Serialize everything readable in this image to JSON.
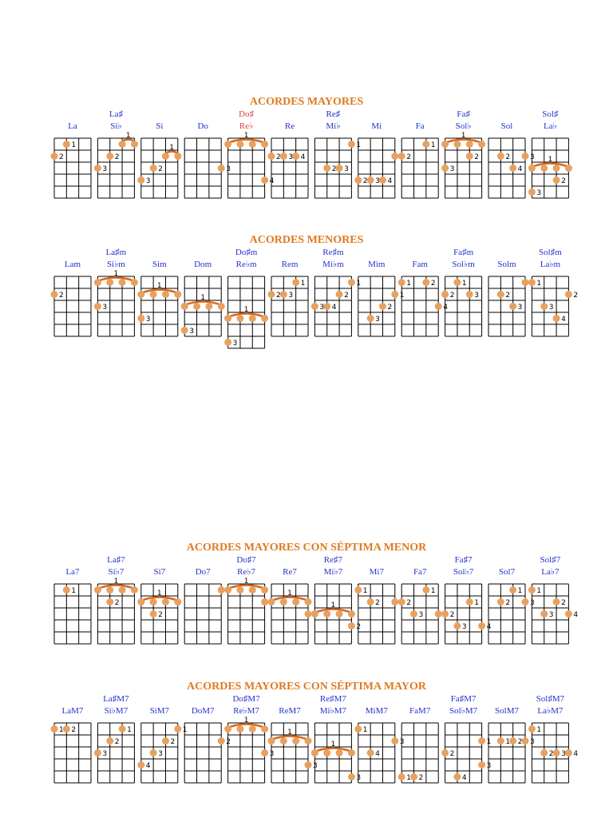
{
  "sections": [
    {
      "title": "ACORDES MAYORES",
      "chords": [
        {
          "name": "La",
          "dots": [
            [
              1,
              2,
              "2"
            ],
            [
              2,
              1,
              "1"
            ]
          ]
        },
        {
          "top": "La♯",
          "name": "Si♭",
          "barre": {
            "fret": 1,
            "from": 3,
            "to": 4,
            "label": "1"
          },
          "dots": [
            [
              2,
              2,
              "2"
            ],
            [
              1,
              3,
              "3"
            ]
          ]
        },
        {
          "name": "Si",
          "barre": {
            "fret": 2,
            "from": 3,
            "to": 4,
            "label": "1"
          },
          "dots": [
            [
              2,
              3,
              "2"
            ],
            [
              1,
              4,
              "3"
            ]
          ]
        },
        {
          "name": "Do",
          "dots": [
            [
              4,
              3,
              "3"
            ]
          ]
        },
        {
          "top": "Do♯",
          "name": "Re♭",
          "color": "#e04040",
          "barre": {
            "fret": 1,
            "from": 1,
            "to": 4,
            "label": "1"
          },
          "dots": [
            [
              4,
              4,
              "4"
            ]
          ]
        },
        {
          "name": "Re",
          "dots": [
            [
              1,
              2,
              "2"
            ],
            [
              2,
              2,
              "3"
            ],
            [
              3,
              2,
              "4"
            ]
          ]
        },
        {
          "top": "Re♯",
          "name": "Mi♭",
          "dots": [
            [
              4,
              1,
              "1"
            ],
            [
              2,
              3,
              "2"
            ],
            [
              3,
              3,
              "3"
            ]
          ]
        },
        {
          "name": "Mi",
          "dots": [
            [
              4,
              2,
              "1"
            ],
            [
              1,
              4,
              "2"
            ],
            [
              2,
              4,
              "3"
            ],
            [
              3,
              4,
              "4"
            ]
          ]
        },
        {
          "name": "Fa",
          "dots": [
            [
              3,
              1,
              "1"
            ],
            [
              1,
              2,
              "2"
            ]
          ]
        },
        {
          "top": "Fa♯",
          "name": "Sol♭",
          "barre": {
            "fret": 1,
            "from": 1,
            "to": 4,
            "label": "1"
          },
          "dots": [
            [
              3,
              2,
              "2"
            ],
            [
              1,
              3,
              "3"
            ]
          ]
        },
        {
          "name": "Sol",
          "dots": [
            [
              2,
              2,
              "2"
            ],
            [
              4,
              2,
              "3"
            ],
            [
              3,
              3,
              "4"
            ]
          ]
        },
        {
          "top": "Sol♯",
          "name": "La♭",
          "barre": {
            "fret": 3,
            "from": 1,
            "to": 4,
            "label": "1"
          },
          "dots": [
            [
              3,
              4,
              "2"
            ],
            [
              1,
              5,
              "3"
            ]
          ]
        }
      ]
    },
    {
      "title": "ACORDES MENORES",
      "chords": [
        {
          "name": "Lam",
          "dots": [
            [
              1,
              2,
              "2"
            ]
          ]
        },
        {
          "top": "La♯m",
          "name": "Si♭m",
          "barre": {
            "fret": 1,
            "from": 1,
            "to": 4,
            "label": "1"
          },
          "dots": [
            [
              1,
              3,
              "3"
            ]
          ]
        },
        {
          "name": "Sim",
          "barre": {
            "fret": 2,
            "from": 1,
            "to": 4,
            "label": "1"
          },
          "dots": [
            [
              1,
              4,
              "3"
            ]
          ]
        },
        {
          "name": "Dom",
          "barre": {
            "fret": 3,
            "from": 1,
            "to": 4,
            "label": "1"
          },
          "dots": [
            [
              1,
              5,
              "3"
            ]
          ]
        },
        {
          "top": "Do♯m",
          "name": "Re♭m",
          "barre": {
            "fret": 4,
            "from": 1,
            "to": 4,
            "label": "1"
          },
          "dots": [
            [
              1,
              6,
              "3"
            ]
          ]
        },
        {
          "name": "Rem",
          "dots": [
            [
              3,
              1,
              "1"
            ],
            [
              1,
              2,
              "2"
            ],
            [
              2,
              2,
              "3"
            ]
          ]
        },
        {
          "top": "Re♯m",
          "name": "Mi♭m",
          "dots": [
            [
              4,
              1,
              "1"
            ],
            [
              3,
              2,
              "2"
            ],
            [
              1,
              3,
              "3"
            ],
            [
              2,
              3,
              "4"
            ]
          ]
        },
        {
          "name": "Mim",
          "dots": [
            [
              4,
              2,
              "1"
            ],
            [
              3,
              3,
              "2"
            ],
            [
              2,
              4,
              "3"
            ]
          ]
        },
        {
          "name": "Fam",
          "dots": [
            [
              1,
              1,
              "1"
            ],
            [
              3,
              1,
              "2"
            ],
            [
              4,
              3,
              "4"
            ]
          ]
        },
        {
          "top": "Fa♯m",
          "name": "Sol♭m",
          "dots": [
            [
              2,
              1,
              "1"
            ],
            [
              1,
              2,
              "2"
            ],
            [
              3,
              2,
              "3"
            ]
          ]
        },
        {
          "name": "Solm",
          "dots": [
            [
              4,
              1,
              "1"
            ],
            [
              2,
              2,
              "2"
            ],
            [
              3,
              3,
              "3"
            ]
          ]
        },
        {
          "top": "Sol♯m",
          "name": "La♭m",
          "dots": [
            [
              1,
              1,
              "1"
            ],
            [
              4,
              2,
              "2"
            ],
            [
              2,
              3,
              "3"
            ],
            [
              3,
              4,
              "4"
            ]
          ]
        }
      ]
    },
    {
      "title": "ACORDES MAYORES CON SÉPTIMA MENOR",
      "chords": [
        {
          "name": "La7",
          "dots": [
            [
              2,
              1,
              "1"
            ]
          ]
        },
        {
          "top": "La♯7",
          "name": "Si♭7",
          "barre": {
            "fret": 1,
            "from": 1,
            "to": 4,
            "label": "1"
          },
          "dots": [
            [
              2,
              2,
              "2"
            ]
          ]
        },
        {
          "name": "Si7",
          "barre": {
            "fret": 2,
            "from": 1,
            "to": 4,
            "label": "1"
          },
          "dots": [
            [
              2,
              3,
              "2"
            ]
          ]
        },
        {
          "name": "Do7",
          "dots": [
            [
              4,
              1,
              "1"
            ]
          ]
        },
        {
          "top": "Do♯7",
          "name": "Re♭7",
          "barre": {
            "fret": 1,
            "from": 1,
            "to": 4,
            "label": "1"
          },
          "dots": [
            [
              4,
              2,
              "2"
            ]
          ]
        },
        {
          "name": "Re7",
          "barre": {
            "fret": 2,
            "from": 1,
            "to": 4,
            "label": "1"
          },
          "dots": [
            [
              4,
              3,
              "2"
            ]
          ]
        },
        {
          "top": "Re♯7",
          "name": "Mi♭7",
          "barre": {
            "fret": 3,
            "from": 1,
            "to": 4,
            "label": "1"
          },
          "dots": [
            [
              4,
              4,
              "2"
            ]
          ]
        },
        {
          "name": "Mi7",
          "dots": [
            [
              1,
              1,
              "1"
            ],
            [
              2,
              2,
              "2"
            ],
            [
              4,
              2,
              "3"
            ]
          ]
        },
        {
          "name": "Fa7",
          "dots": [
            [
              3,
              1,
              "1"
            ],
            [
              1,
              2,
              "2"
            ],
            [
              2,
              3,
              "3"
            ],
            [
              4,
              3,
              "4"
            ]
          ]
        },
        {
          "top": "Fa♯7",
          "name": "Sol♭7",
          "dots": [
            [
              3,
              2,
              "1"
            ],
            [
              1,
              3,
              "2"
            ],
            [
              2,
              4,
              "3"
            ],
            [
              4,
              4,
              "4"
            ]
          ]
        },
        {
          "name": "Sol7",
          "dots": [
            [
              3,
              1,
              "1"
            ],
            [
              2,
              2,
              "2"
            ],
            [
              4,
              2,
              "3"
            ]
          ]
        },
        {
          "top": "Sol♯7",
          "name": "La♭7",
          "dots": [
            [
              1,
              1,
              "1"
            ],
            [
              3,
              2,
              "2"
            ],
            [
              2,
              3,
              "3"
            ],
            [
              4,
              3,
              "4"
            ]
          ]
        }
      ]
    },
    {
      "title": "ACORDES MAYORES CON SÉPTIMA MAYOR",
      "chords": [
        {
          "name": "LaM7",
          "dots": [
            [
              1,
              1,
              "1"
            ],
            [
              2,
              1,
              "2"
            ]
          ]
        },
        {
          "top": "La♯M7",
          "name": "Si♭M7",
          "dots": [
            [
              3,
              1,
              "1"
            ],
            [
              2,
              2,
              "2"
            ],
            [
              1,
              3,
              "3"
            ]
          ]
        },
        {
          "name": "SiM7",
          "dots": [
            [
              4,
              1,
              "1"
            ],
            [
              3,
              2,
              "2"
            ],
            [
              2,
              3,
              "3"
            ],
            [
              1,
              4,
              "4"
            ]
          ]
        },
        {
          "name": "DoM7",
          "dots": [
            [
              4,
              2,
              "2"
            ]
          ]
        },
        {
          "top": "Do♯M7",
          "name": "Re♭M7",
          "barre": {
            "fret": 1,
            "from": 1,
            "to": 4,
            "label": "1"
          },
          "dots": [
            [
              4,
              3,
              "3"
            ]
          ]
        },
        {
          "name": "ReM7",
          "barre": {
            "fret": 2,
            "from": 1,
            "to": 4,
            "label": "1"
          },
          "dots": [
            [
              4,
              4,
              "3"
            ]
          ]
        },
        {
          "top": "Re♯M7",
          "name": "Mi♭M7",
          "barre": {
            "fret": 3,
            "from": 1,
            "to": 4,
            "label": "1"
          },
          "dots": [
            [
              4,
              5,
              "3"
            ]
          ]
        },
        {
          "name": "MiM7",
          "dots": [
            [
              1,
              1,
              "1"
            ],
            [
              4,
              2,
              "3"
            ],
            [
              2,
              3,
              "4"
            ]
          ]
        },
        {
          "name": "FaM7",
          "dots": [
            [
              1,
              5,
              "1"
            ],
            [
              2,
              5,
              "2"
            ]
          ]
        },
        {
          "top": "Fa♯M7",
          "name": "Sol♭M7",
          "dots": [
            [
              4,
              2,
              "1"
            ],
            [
              1,
              3,
              "2"
            ],
            [
              4,
              4,
              "3"
            ],
            [
              2,
              5,
              "4"
            ]
          ]
        },
        {
          "name": "SolM7",
          "dots": [
            [
              2,
              2,
              "1"
            ],
            [
              3,
              2,
              "2"
            ],
            [
              4,
              2,
              "3"
            ]
          ]
        },
        {
          "top": "Sol♯M7",
          "name": "La♭M7",
          "dots": [
            [
              1,
              1,
              "1"
            ],
            [
              2,
              3,
              "2"
            ],
            [
              3,
              3,
              "3"
            ],
            [
              4,
              3,
              "4"
            ]
          ]
        }
      ]
    }
  ]
}
